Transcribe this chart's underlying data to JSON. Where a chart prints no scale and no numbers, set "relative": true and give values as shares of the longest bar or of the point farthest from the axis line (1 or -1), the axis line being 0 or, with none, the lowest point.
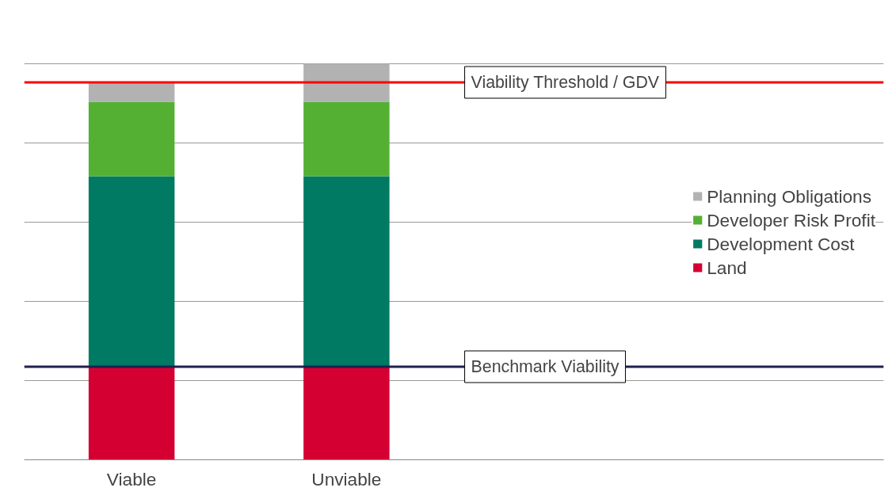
{
  "chart_data": {
    "type": "bar",
    "stacked": true,
    "relative": true,
    "categories": [
      "Viable",
      "Unviable"
    ],
    "series": [
      {
        "name": "Land",
        "color": "#d50032",
        "values": [
          0.235,
          0.235
        ]
      },
      {
        "name": "Development Cost",
        "color": "#007a63",
        "values": [
          0.481,
          0.481
        ]
      },
      {
        "name": "Developer Risk Profit",
        "color": "#54b033",
        "values": [
          0.188,
          0.188
        ]
      },
      {
        "name": "Planning Obligations",
        "color": "#b2b2b2",
        "values": [
          0.049,
          0.096
        ]
      }
    ],
    "ref_lines": [
      {
        "axis": "y",
        "value": 0.953,
        "label": "Viability Threshold / GDV",
        "color": "#ff0000"
      },
      {
        "axis": "y",
        "value": 0.235,
        "label": "Benchmark Viability",
        "color": "#1f1f4f"
      }
    ],
    "grid": "y",
    "legend": "right"
  }
}
